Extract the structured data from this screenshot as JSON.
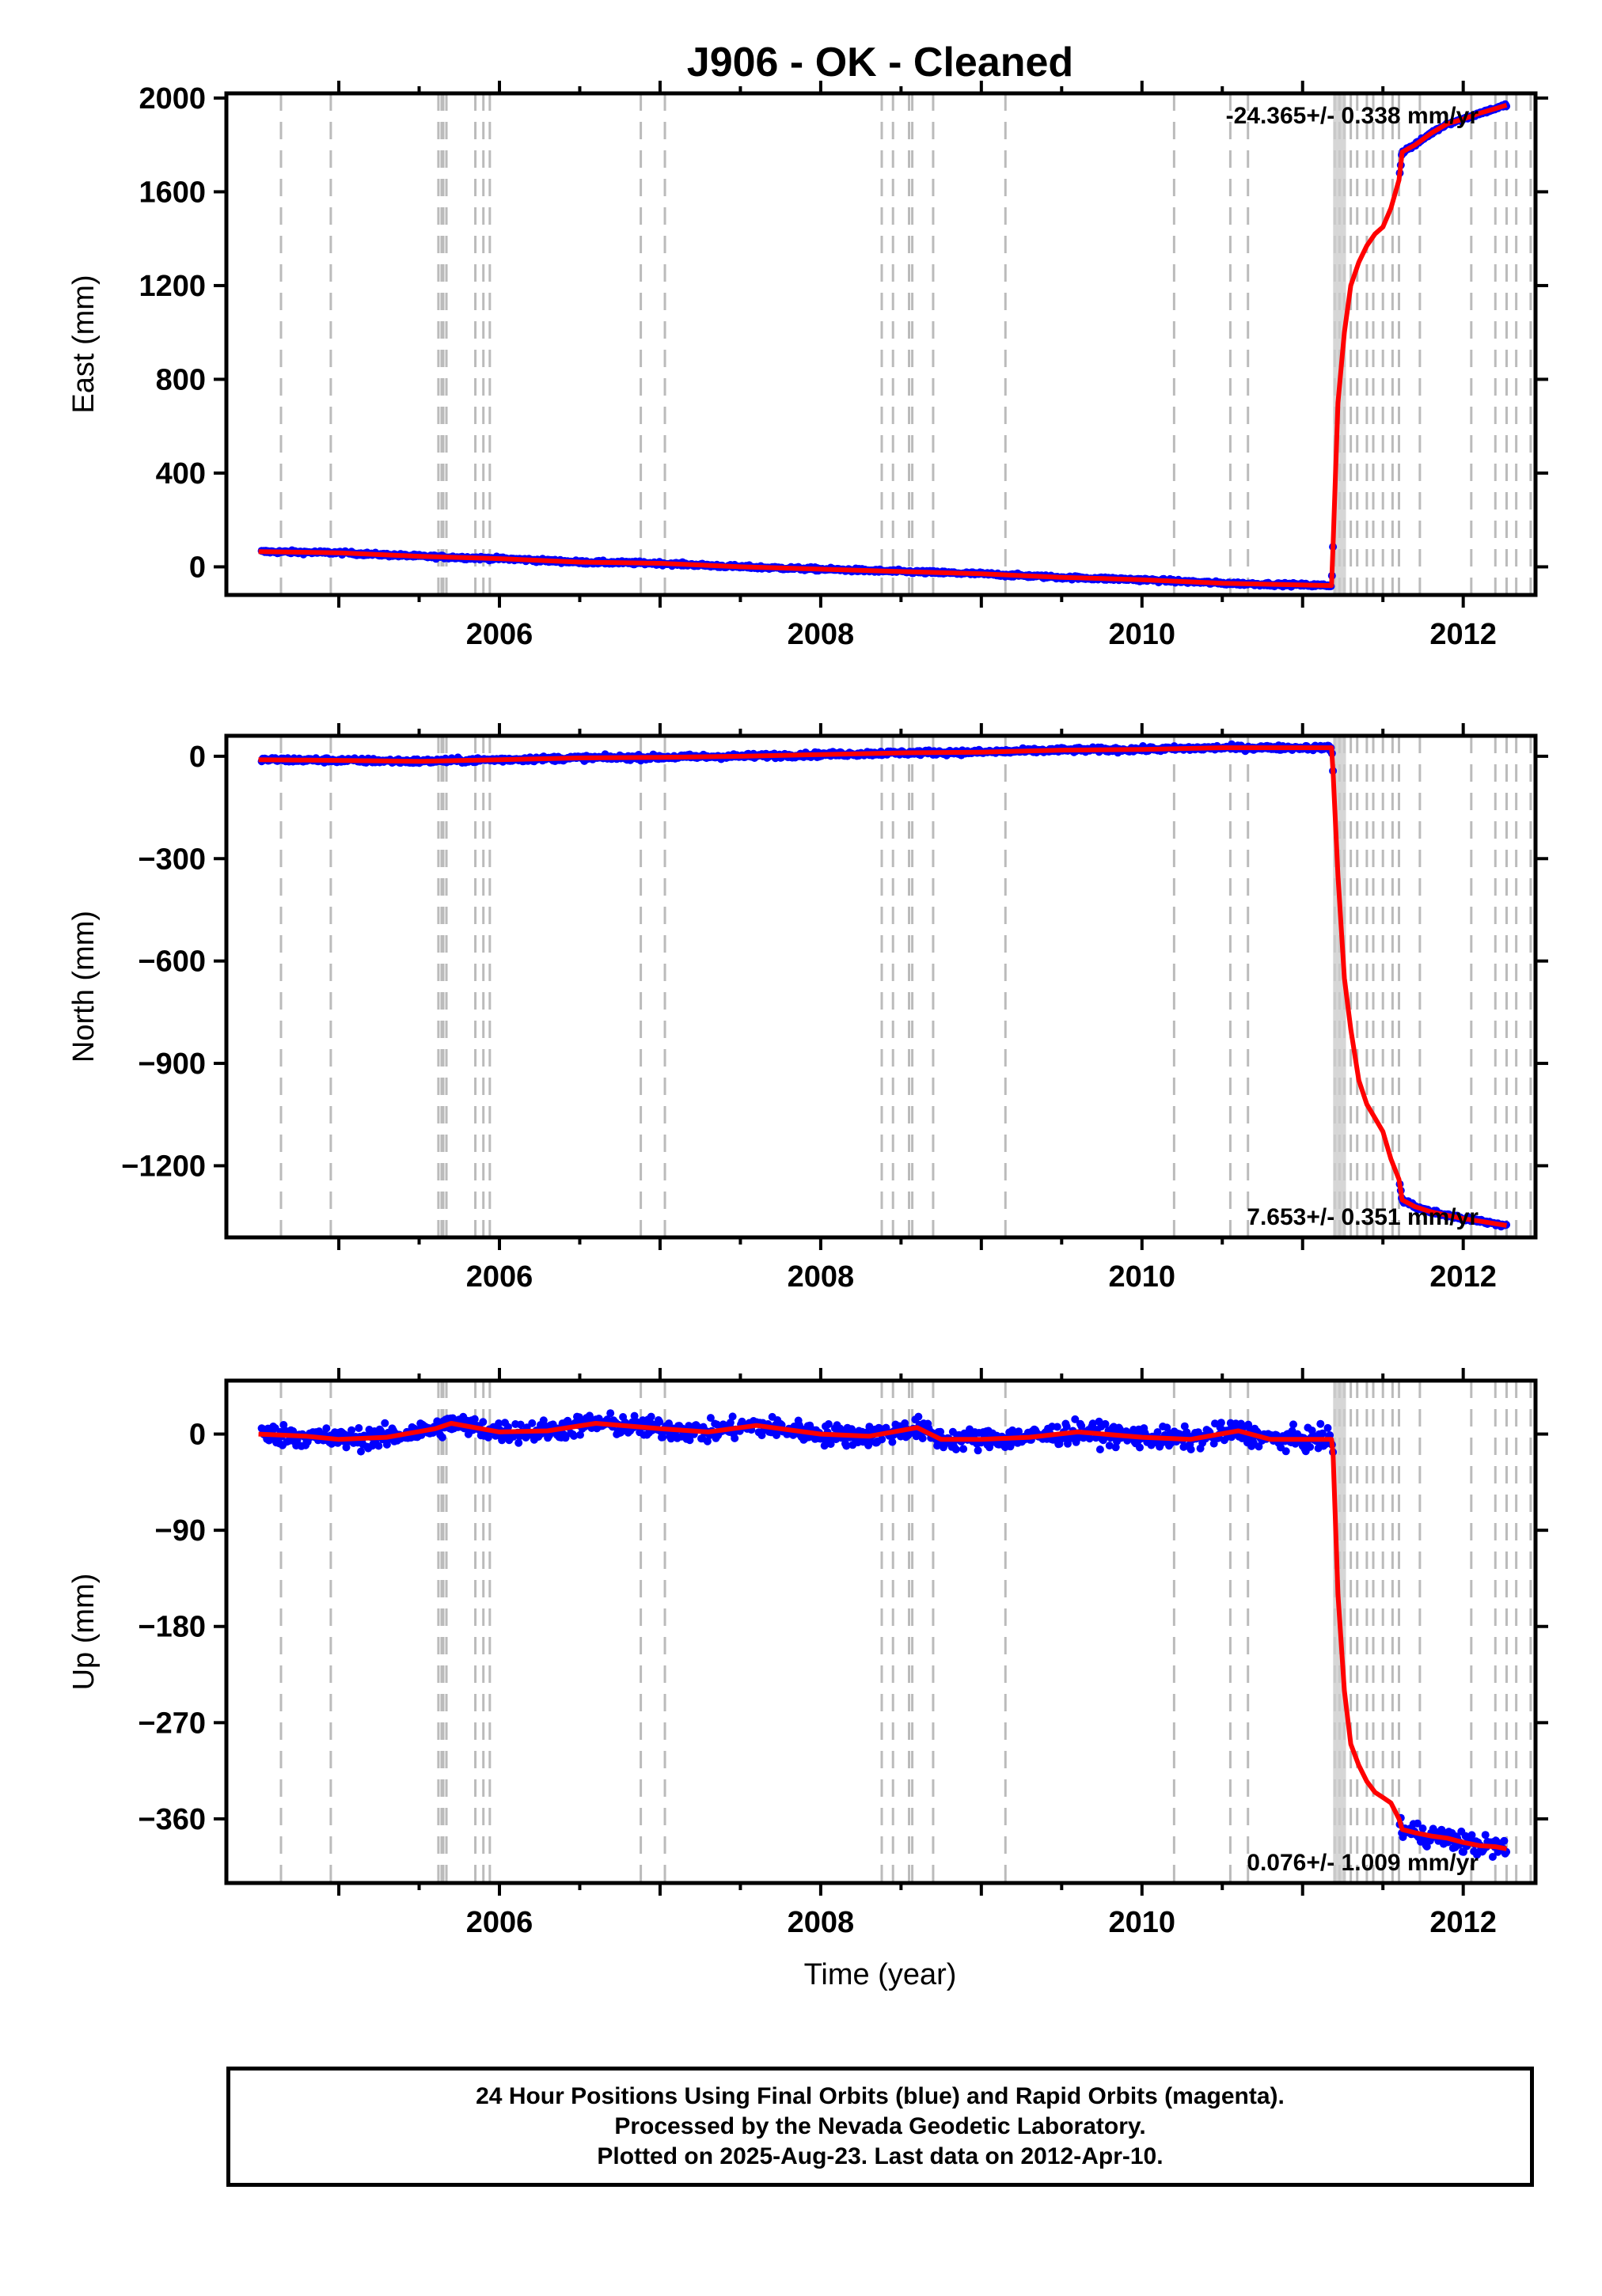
{
  "chart_data": [
    {
      "type": "scatter",
      "panel": "east",
      "title": "J906  - OK - Cleaned",
      "ylabel": "East (mm)",
      "xlim": [
        2004.3,
        2012.45
      ],
      "ylim": [
        -120,
        2020
      ],
      "yticks": [
        0,
        400,
        800,
        1200,
        1600,
        2000
      ],
      "xticks": [
        2006,
        2008,
        2010,
        2012
      ],
      "rate_label": "-24.365+/- 0.338 mm/yr",
      "model": [
        [
          2004.5,
          65
        ],
        [
          2005.0,
          60
        ],
        [
          2005.5,
          45
        ],
        [
          2006.0,
          35
        ],
        [
          2006.5,
          20
        ],
        [
          2007.0,
          15
        ],
        [
          2007.5,
          0
        ],
        [
          2008.0,
          -10
        ],
        [
          2008.5,
          -20
        ],
        [
          2009.0,
          -30
        ],
        [
          2009.5,
          -45
        ],
        [
          2010.0,
          -55
        ],
        [
          2010.5,
          -70
        ],
        [
          2011.18,
          -80
        ],
        [
          2011.19,
          100
        ],
        [
          2011.22,
          700
        ],
        [
          2011.26,
          1000
        ],
        [
          2011.3,
          1200
        ],
        [
          2011.35,
          1300
        ],
        [
          2011.4,
          1370
        ],
        [
          2011.45,
          1420
        ],
        [
          2011.5,
          1450
        ],
        [
          2011.55,
          1530
        ],
        [
          2011.6,
          1650
        ],
        [
          2011.62,
          1770
        ],
        [
          2011.7,
          1800
        ],
        [
          2011.8,
          1850
        ],
        [
          2011.9,
          1890
        ],
        [
          2012.0,
          1910
        ],
        [
          2012.1,
          1935
        ],
        [
          2012.2,
          1955
        ],
        [
          2012.27,
          1970
        ]
      ]
    },
    {
      "type": "scatter",
      "panel": "north",
      "ylabel": "North (mm)",
      "xlim": [
        2004.3,
        2012.45
      ],
      "ylim": [
        -1410,
        60
      ],
      "yticks": [
        0,
        -300,
        -600,
        -900,
        -1200
      ],
      "xticks": [
        2006,
        2008,
        2010,
        2012
      ],
      "rate_label": "7.653+/- 0.351 mm/yr",
      "model": [
        [
          2004.5,
          -10
        ],
        [
          2005.0,
          -12
        ],
        [
          2005.5,
          -15
        ],
        [
          2006.0,
          -10
        ],
        [
          2006.5,
          -5
        ],
        [
          2007.0,
          -3
        ],
        [
          2007.5,
          0
        ],
        [
          2008.0,
          5
        ],
        [
          2008.5,
          10
        ],
        [
          2009.0,
          12
        ],
        [
          2009.5,
          18
        ],
        [
          2010.0,
          20
        ],
        [
          2010.5,
          25
        ],
        [
          2011.18,
          25
        ],
        [
          2011.19,
          -50
        ],
        [
          2011.22,
          -350
        ],
        [
          2011.26,
          -650
        ],
        [
          2011.3,
          -800
        ],
        [
          2011.35,
          -950
        ],
        [
          2011.4,
          -1020
        ],
        [
          2011.45,
          -1060
        ],
        [
          2011.5,
          -1100
        ],
        [
          2011.55,
          -1180
        ],
        [
          2011.6,
          -1240
        ],
        [
          2011.62,
          -1300
        ],
        [
          2011.7,
          -1320
        ],
        [
          2011.8,
          -1335
        ],
        [
          2011.9,
          -1345
        ],
        [
          2012.0,
          -1355
        ],
        [
          2012.1,
          -1362
        ],
        [
          2012.2,
          -1370
        ],
        [
          2012.27,
          -1375
        ]
      ]
    },
    {
      "type": "scatter",
      "panel": "up",
      "ylabel": "Up (mm)",
      "xlabel": "Time (year)",
      "xlim": [
        2004.3,
        2012.45
      ],
      "ylim": [
        -420,
        50
      ],
      "yticks": [
        0,
        -90,
        -180,
        -270,
        -360
      ],
      "xticks": [
        2006,
        2008,
        2010,
        2012
      ],
      "rate_label": "0.076+/- 1.009 mm/yr",
      "model": [
        [
          2004.5,
          0
        ],
        [
          2004.8,
          -2
        ],
        [
          2005.0,
          -5
        ],
        [
          2005.3,
          -3
        ],
        [
          2005.6,
          5
        ],
        [
          2005.7,
          10
        ],
        [
          2006.0,
          2
        ],
        [
          2006.3,
          3
        ],
        [
          2006.6,
          10
        ],
        [
          2007.0,
          5
        ],
        [
          2007.3,
          2
        ],
        [
          2007.6,
          8
        ],
        [
          2008.0,
          0
        ],
        [
          2008.3,
          -2
        ],
        [
          2008.6,
          6
        ],
        [
          2008.75,
          -5
        ],
        [
          2009.0,
          -5
        ],
        [
          2009.3,
          -3
        ],
        [
          2009.6,
          2
        ],
        [
          2010.0,
          -3
        ],
        [
          2010.3,
          -5
        ],
        [
          2010.6,
          3
        ],
        [
          2010.8,
          -5
        ],
        [
          2011.18,
          -5
        ],
        [
          2011.19,
          -20
        ],
        [
          2011.22,
          -150
        ],
        [
          2011.26,
          -240
        ],
        [
          2011.3,
          -290
        ],
        [
          2011.35,
          -310
        ],
        [
          2011.4,
          -325
        ],
        [
          2011.45,
          -335
        ],
        [
          2011.5,
          -340
        ],
        [
          2011.55,
          -345
        ],
        [
          2011.6,
          -360
        ],
        [
          2011.62,
          -370
        ],
        [
          2011.7,
          -373
        ],
        [
          2011.8,
          -376
        ],
        [
          2011.9,
          -378
        ],
        [
          2012.0,
          -382
        ],
        [
          2012.1,
          -385
        ],
        [
          2012.2,
          -386
        ],
        [
          2012.27,
          -388
        ]
      ]
    }
  ],
  "equipment_changes": [
    2004.64,
    2004.95,
    2005.62,
    2005.64,
    2005.65,
    2005.67,
    2005.85,
    2005.9,
    2005.94,
    2006.88,
    2007.03,
    2008.38,
    2008.45,
    2008.55,
    2008.57,
    2008.7,
    2009.15,
    2010.2,
    2010.55,
    2010.66,
    2011.2,
    2011.23,
    2011.26,
    2011.3,
    2011.34,
    2011.4,
    2011.44,
    2011.5,
    2011.56,
    2011.6,
    2011.73,
    2012.05,
    2012.2,
    2012.27,
    2012.33,
    2012.42
  ],
  "colors": {
    "data": "#0000ff",
    "model": "#ff0000",
    "events": "#bbbbbb"
  },
  "footer": {
    "line1": "24 Hour Positions Using Final Orbits (blue) and Rapid Orbits (magenta).",
    "line2": "Processed by the Nevada Geodetic Laboratory.",
    "line3": "Plotted on 2025-Aug-23. Last data on 2012-Apr-10."
  }
}
